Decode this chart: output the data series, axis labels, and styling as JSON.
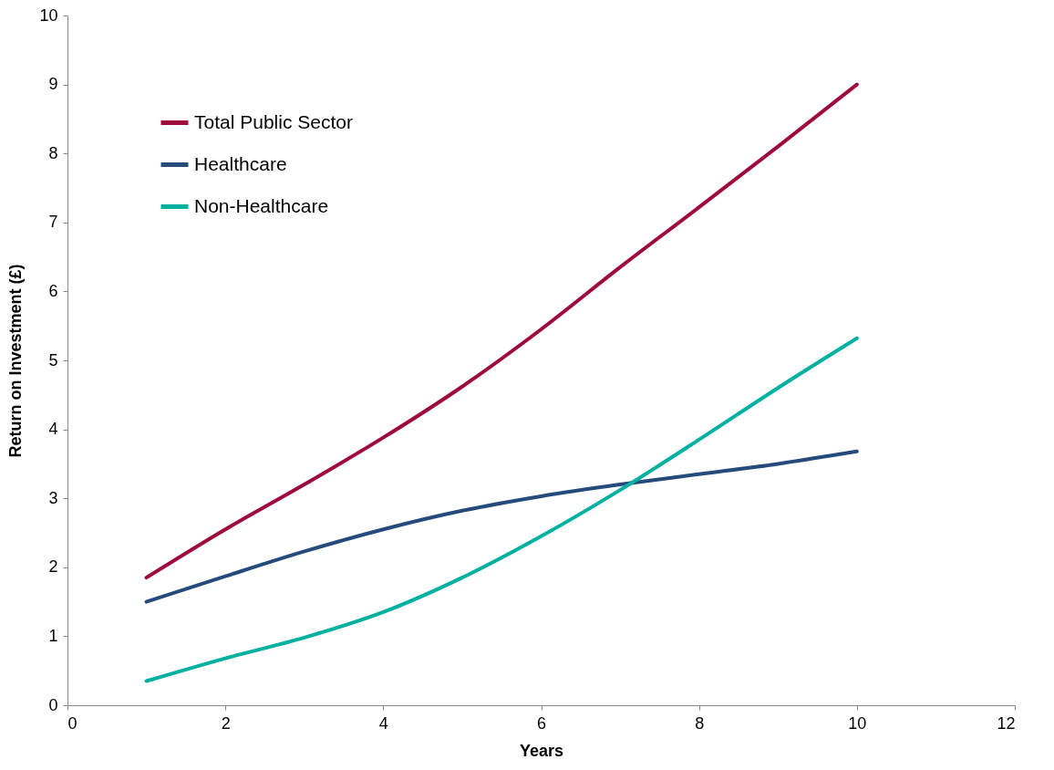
{
  "chart_data": {
    "type": "line",
    "xlabel": "Years",
    "ylabel": "Return on Investment (£)",
    "x": [
      1,
      2,
      3,
      4,
      5,
      6,
      7,
      8,
      9,
      10
    ],
    "series": [
      {
        "name": "Total Public Sector",
        "color": "#9e0b3a",
        "values": [
          1.85,
          2.55,
          3.2,
          3.88,
          4.62,
          5.45,
          6.35,
          7.22,
          8.1,
          9.0
        ]
      },
      {
        "name": "Healthcare",
        "color": "#254a7c",
        "values": [
          1.5,
          1.87,
          2.23,
          2.55,
          2.82,
          3.03,
          3.2,
          3.35,
          3.5,
          3.68
        ]
      },
      {
        "name": "Non-Healthcare",
        "color": "#00b0a0",
        "values": [
          0.35,
          0.68,
          0.98,
          1.35,
          1.85,
          2.45,
          3.12,
          3.85,
          4.6,
          5.32
        ]
      }
    ],
    "xlim": [
      0,
      12
    ],
    "xticks": [
      0,
      2,
      4,
      6,
      8,
      10,
      12
    ],
    "ylim": [
      0,
      10
    ],
    "yticks": [
      0,
      1,
      2,
      3,
      4,
      5,
      6,
      7,
      8,
      9,
      10
    ],
    "grid": false,
    "legend": "top left",
    "marker": "none",
    "line_style": "solid"
  }
}
